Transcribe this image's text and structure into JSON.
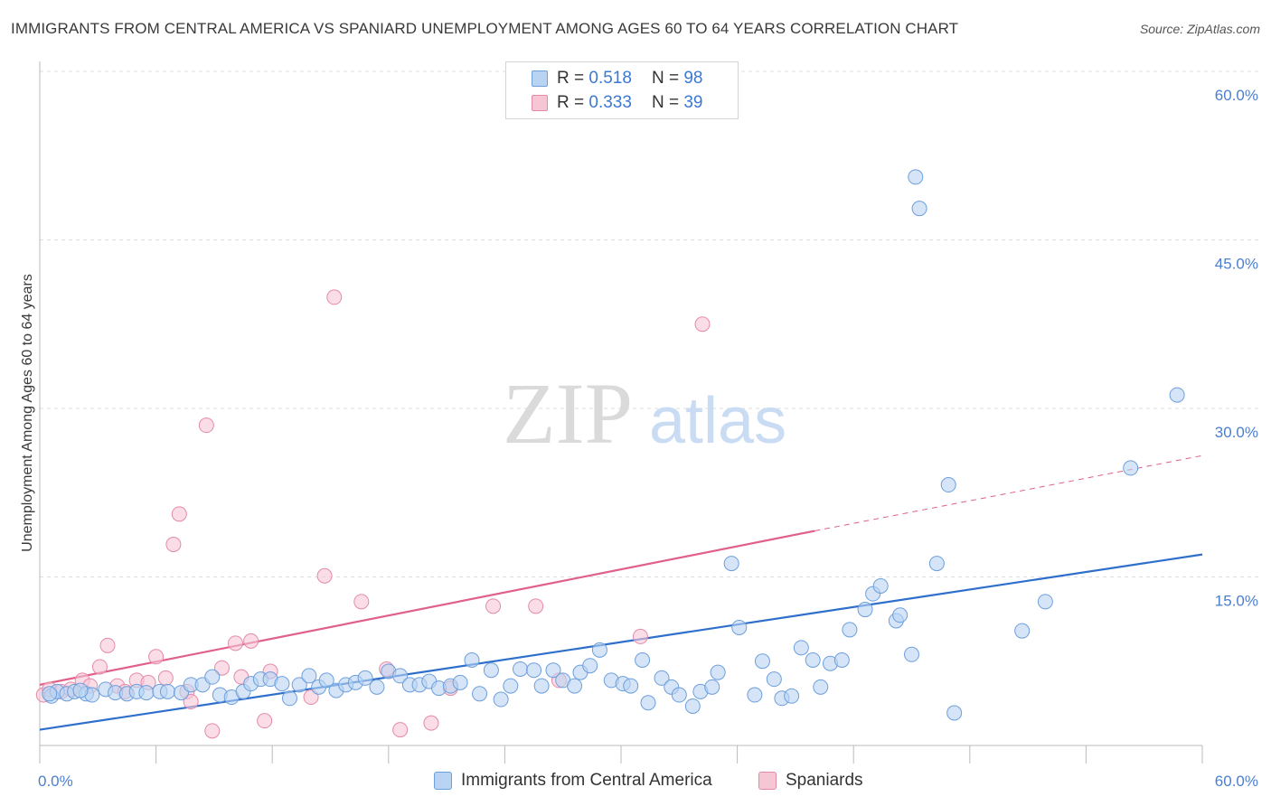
{
  "title": "IMMIGRANTS FROM CENTRAL AMERICA VS SPANIARD UNEMPLOYMENT AMONG AGES 60 TO 64 YEARS CORRELATION CHART",
  "source": "Source: ZipAtlas.com",
  "watermark": {
    "zip": "ZIP",
    "atlas": "atlas"
  },
  "legend": {
    "rows": [
      {
        "r_label": "R =",
        "r_value": "0.518",
        "n_label": "N =",
        "n_value": "98"
      },
      {
        "r_label": "R =",
        "r_value": "0.333",
        "n_label": "N =",
        "n_value": "39"
      }
    ]
  },
  "bottom_legend": {
    "series1": "Immigrants from Central America",
    "series2": "Spaniards"
  },
  "colors": {
    "blue_fill": "#b9d3f2",
    "blue_stroke": "#6d9fdc",
    "blue_line": "#2f6fcc",
    "pink_fill": "#f7c6d5",
    "pink_stroke": "#e48aa8",
    "pink_line": "#e0608a",
    "grid": "#dddddd",
    "tick_text": "#4a7fcf"
  },
  "chart_data": {
    "type": "scatter",
    "title": "IMMIGRANTS FROM CENTRAL AMERICA VS SPANIARD UNEMPLOYMENT AMONG AGES 60 TO 64 YEARS CORRELATION CHART",
    "xlabel": "",
    "ylabel": "Unemployment Among Ages 60 to 64 years",
    "xlim": [
      0,
      60
    ],
    "ylim": [
      0,
      60
    ],
    "x_tick_labels": [
      "0.0%",
      "60.0%"
    ],
    "y_ticks": [
      15,
      30,
      45,
      60
    ],
    "y_tick_labels": [
      "15.0%",
      "30.0%",
      "45.0%",
      "60.0%"
    ],
    "grid": true,
    "legend_position": "top-center",
    "series": [
      {
        "name": "Immigrants from Central America",
        "color": "#b9d3f2",
        "r": 0.518,
        "n": 98,
        "trend": {
          "x": [
            0,
            60
          ],
          "y": [
            1.4,
            17.0
          ]
        },
        "points": [
          [
            0.6,
            4.4
          ],
          [
            0.9,
            4.8
          ],
          [
            1.4,
            4.6
          ],
          [
            1.8,
            4.8
          ],
          [
            2.4,
            4.6
          ],
          [
            2.7,
            4.5
          ],
          [
            3.4,
            5.0
          ],
          [
            3.9,
            4.7
          ],
          [
            4.5,
            4.6
          ],
          [
            5.0,
            4.8
          ],
          [
            5.5,
            4.7
          ],
          [
            6.2,
            4.8
          ],
          [
            6.6,
            4.8
          ],
          [
            7.3,
            4.7
          ],
          [
            7.8,
            5.4
          ],
          [
            8.4,
            5.4
          ],
          [
            8.9,
            6.1
          ],
          [
            9.3,
            4.5
          ],
          [
            9.9,
            4.3
          ],
          [
            10.5,
            4.8
          ],
          [
            10.9,
            5.5
          ],
          [
            11.4,
            5.9
          ],
          [
            11.9,
            5.9
          ],
          [
            12.5,
            5.5
          ],
          [
            12.9,
            4.2
          ],
          [
            13.4,
            5.4
          ],
          [
            13.9,
            6.2
          ],
          [
            14.4,
            5.2
          ],
          [
            14.8,
            5.8
          ],
          [
            15.3,
            4.9
          ],
          [
            15.8,
            5.4
          ],
          [
            16.3,
            5.6
          ],
          [
            16.8,
            6.0
          ],
          [
            17.4,
            5.2
          ],
          [
            18.0,
            6.6
          ],
          [
            18.6,
            6.2
          ],
          [
            19.1,
            5.4
          ],
          [
            19.6,
            5.4
          ],
          [
            20.1,
            5.7
          ],
          [
            20.6,
            5.1
          ],
          [
            21.2,
            5.3
          ],
          [
            21.7,
            5.6
          ],
          [
            22.3,
            7.6
          ],
          [
            22.7,
            4.6
          ],
          [
            23.3,
            6.7
          ],
          [
            23.8,
            4.1
          ],
          [
            24.3,
            5.3
          ],
          [
            24.8,
            6.8
          ],
          [
            25.5,
            6.7
          ],
          [
            25.9,
            5.3
          ],
          [
            26.5,
            6.7
          ],
          [
            27.0,
            5.8
          ],
          [
            27.6,
            5.3
          ],
          [
            27.9,
            6.5
          ],
          [
            28.4,
            7.1
          ],
          [
            28.9,
            8.5
          ],
          [
            29.5,
            5.8
          ],
          [
            30.1,
            5.5
          ],
          [
            30.5,
            5.3
          ],
          [
            31.1,
            7.6
          ],
          [
            31.4,
            3.8
          ],
          [
            32.1,
            6.0
          ],
          [
            32.6,
            5.2
          ],
          [
            33.0,
            4.5
          ],
          [
            33.7,
            3.5
          ],
          [
            34.1,
            4.8
          ],
          [
            34.7,
            5.2
          ],
          [
            35.0,
            6.5
          ],
          [
            35.7,
            16.2
          ],
          [
            36.1,
            10.5
          ],
          [
            36.9,
            4.5
          ],
          [
            37.3,
            7.5
          ],
          [
            37.9,
            5.9
          ],
          [
            38.3,
            4.2
          ],
          [
            38.8,
            4.4
          ],
          [
            39.3,
            8.7
          ],
          [
            39.9,
            7.6
          ],
          [
            40.3,
            5.2
          ],
          [
            40.8,
            7.3
          ],
          [
            41.4,
            7.6
          ],
          [
            41.8,
            10.3
          ],
          [
            42.6,
            12.1
          ],
          [
            43.0,
            13.5
          ],
          [
            43.4,
            14.2
          ],
          [
            44.2,
            11.1
          ],
          [
            44.4,
            11.6
          ],
          [
            45.0,
            8.1
          ],
          [
            45.2,
            50.6
          ],
          [
            45.4,
            47.8
          ],
          [
            46.3,
            16.2
          ],
          [
            46.9,
            23.2
          ],
          [
            47.2,
            2.9
          ],
          [
            50.7,
            10.2
          ],
          [
            51.9,
            12.8
          ],
          [
            56.3,
            24.7
          ],
          [
            58.7,
            31.2
          ],
          [
            0.5,
            4.6
          ],
          [
            2.1,
            4.9
          ]
        ]
      },
      {
        "name": "Spaniards",
        "color": "#f7c6d5",
        "r": 0.333,
        "n": 39,
        "trend": {
          "x": [
            0,
            40
          ],
          "y": [
            5.4,
            19.1
          ]
        },
        "trend_dashed": {
          "x": [
            40,
            60
          ],
          "y": [
            19.1,
            25.8
          ]
        },
        "points": [
          [
            0.2,
            4.5
          ],
          [
            0.5,
            5.0
          ],
          [
            1.1,
            4.8
          ],
          [
            1.6,
            5.0
          ],
          [
            2.2,
            5.8
          ],
          [
            2.6,
            5.3
          ],
          [
            3.1,
            7.0
          ],
          [
            3.5,
            8.9
          ],
          [
            4.0,
            5.3
          ],
          [
            4.4,
            4.8
          ],
          [
            5.0,
            5.8
          ],
          [
            5.6,
            5.6
          ],
          [
            6.0,
            7.9
          ],
          [
            6.5,
            6.0
          ],
          [
            6.9,
            17.9
          ],
          [
            7.2,
            20.6
          ],
          [
            7.6,
            4.8
          ],
          [
            7.8,
            3.9
          ],
          [
            8.6,
            28.5
          ],
          [
            8.9,
            1.3
          ],
          [
            9.4,
            6.9
          ],
          [
            10.1,
            9.1
          ],
          [
            10.4,
            6.1
          ],
          [
            10.9,
            9.3
          ],
          [
            11.6,
            2.2
          ],
          [
            11.9,
            6.6
          ],
          [
            14.0,
            4.3
          ],
          [
            14.7,
            15.1
          ],
          [
            15.2,
            39.9
          ],
          [
            16.6,
            12.8
          ],
          [
            17.9,
            6.8
          ],
          [
            18.6,
            1.4
          ],
          [
            20.2,
            2.0
          ],
          [
            21.2,
            5.1
          ],
          [
            23.4,
            12.4
          ],
          [
            25.6,
            12.4
          ],
          [
            26.8,
            5.8
          ],
          [
            31.0,
            9.7
          ],
          [
            34.2,
            37.5
          ]
        ]
      }
    ]
  }
}
